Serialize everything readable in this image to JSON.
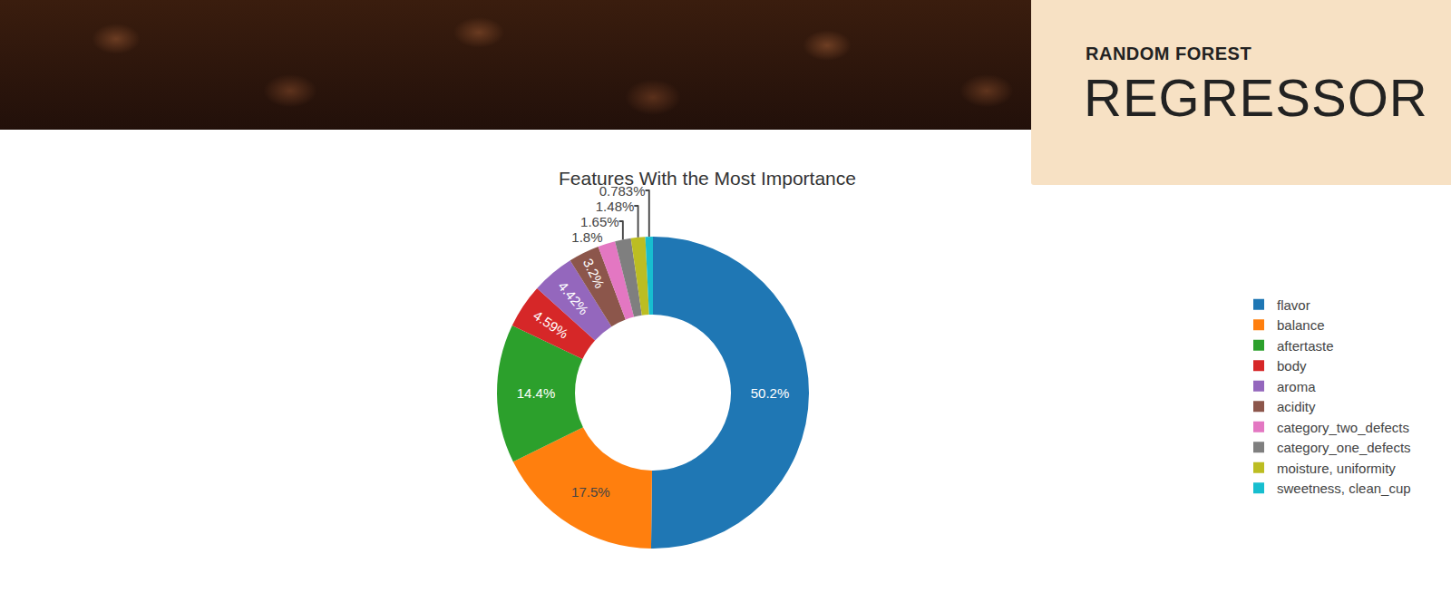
{
  "header": {
    "label": "RANDOM FOREST",
    "title": "REGRESSOR"
  },
  "chart_data": {
    "type": "pie",
    "title": "Features With the Most Importance",
    "categories": [
      "flavor",
      "balance",
      "aftertaste",
      "body",
      "aroma",
      "acidity",
      "category_two_defects",
      "category_one_defects",
      "moisture, uniformity",
      "sweetness, clean_cup"
    ],
    "values": [
      50.2,
      17.5,
      14.4,
      4.59,
      4.42,
      3.2,
      1.8,
      1.65,
      1.48,
      0.783
    ],
    "value_labels": [
      "50.2%",
      "17.5%",
      "14.4%",
      "4.59%",
      "4.42%",
      "3.2%",
      "1.8%",
      "1.65%",
      "1.48%",
      "0.783%"
    ],
    "colors": [
      "#1f77b4",
      "#ff7f0e",
      "#2ca02c",
      "#d62728",
      "#9467bd",
      "#8c564b",
      "#e377c2",
      "#7f7f7f",
      "#bcbd22",
      "#17becf"
    ],
    "data_labels": true,
    "legend": "right"
  }
}
